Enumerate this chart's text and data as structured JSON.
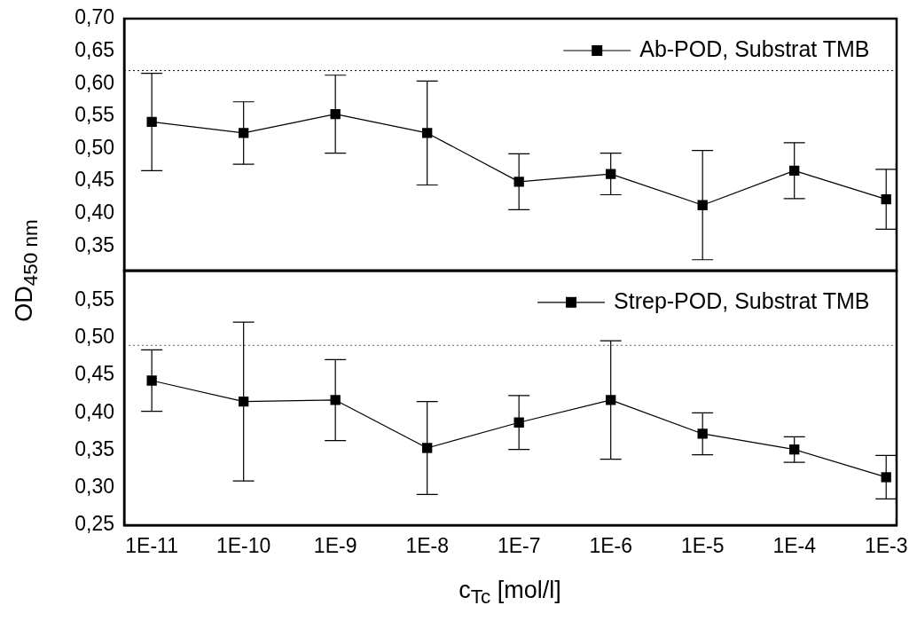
{
  "chart_data": [
    {
      "type": "line",
      "ylabel": "OD$_{450 nm}$",
      "x": [
        1e-11,
        1e-10,
        1e-09,
        1e-08,
        1e-07,
        1e-06,
        1e-05,
        0.0001,
        0.001
      ],
      "log": "x",
      "xlim": [
        5e-12,
        0.0013
      ],
      "xticks": [
        {
          "value": 1e-11,
          "label": null
        },
        {
          "value": 1e-10,
          "label": null
        },
        {
          "value": 1e-09,
          "label": null
        },
        {
          "value": 1e-08,
          "label": null
        },
        {
          "value": 1e-07,
          "label": null
        },
        {
          "value": 1e-06,
          "label": null
        },
        {
          "value": 1e-05,
          "label": null
        },
        {
          "value": 0.0001,
          "label": null
        },
        {
          "value": 0.001,
          "label": null
        }
      ],
      "ylim": [
        0.312,
        0.7
      ],
      "yticks": [
        {
          "value": 0.35,
          "label": "0,35"
        },
        {
          "value": 0.4,
          "label": "0,40"
        },
        {
          "value": 0.45,
          "label": "0,45"
        },
        {
          "value": 0.5,
          "label": "0,50"
        },
        {
          "value": 0.55,
          "label": "0,55"
        },
        {
          "value": 0.6,
          "label": "0,60"
        },
        {
          "value": 0.65,
          "label": "0,65"
        },
        {
          "value": 0.7,
          "label": "0,70"
        }
      ],
      "tick_labels": "y",
      "grid": false,
      "legend": "top right",
      "marker": "square",
      "line_style": "solid",
      "ref_lines": [
        {
          "axis": "y",
          "value": 0.62,
          "line_style": "dotted",
          "color": "#000000"
        }
      ],
      "series": [
        {
          "name": "Ab-POD, Substrat TMB",
          "color": "#000000",
          "values": [
            0.541,
            0.524,
            0.553,
            0.524,
            0.449,
            0.461,
            0.413,
            0.466,
            0.422
          ],
          "errors": [
            0.075,
            0.048,
            0.06,
            0.08,
            0.043,
            0.032,
            0.084,
            0.043,
            0.046
          ]
        }
      ]
    },
    {
      "type": "line",
      "xlabel": "c$_{Tc}$ [mol/l]",
      "x": [
        1e-11,
        1e-10,
        1e-09,
        1e-08,
        1e-07,
        1e-06,
        1e-05,
        0.0001,
        0.001
      ],
      "log": "x",
      "xlim": [
        5e-12,
        0.0013
      ],
      "xticks": [
        {
          "value": 1e-11,
          "label": "1E-11"
        },
        {
          "value": 1e-10,
          "label": "1E-10"
        },
        {
          "value": 1e-09,
          "label": "1E-9"
        },
        {
          "value": 1e-08,
          "label": "1E-8"
        },
        {
          "value": 1e-07,
          "label": "1E-7"
        },
        {
          "value": 1e-06,
          "label": "1E-6"
        },
        {
          "value": 1e-05,
          "label": "1E-5"
        },
        {
          "value": 0.0001,
          "label": "1E-4"
        },
        {
          "value": 0.001,
          "label": "1E-3"
        }
      ],
      "ylim": [
        0.25,
        0.59
      ],
      "yticks": [
        {
          "value": 0.25,
          "label": "0,25"
        },
        {
          "value": 0.3,
          "label": "0,30"
        },
        {
          "value": 0.35,
          "label": "0,35"
        },
        {
          "value": 0.4,
          "label": "0,40"
        },
        {
          "value": 0.45,
          "label": "0,45"
        },
        {
          "value": 0.5,
          "label": "0,50"
        },
        {
          "value": 0.55,
          "label": "0,55"
        }
      ],
      "grid": false,
      "legend": "top right",
      "marker": "square",
      "line_style": "solid",
      "ref_lines": [
        {
          "axis": "y",
          "value": 0.49,
          "line_style": "dotted",
          "color": "#666666"
        }
      ],
      "series": [
        {
          "name": "Strep-POD, Substrat TMB",
          "color": "#000000",
          "values": [
            0.443,
            0.415,
            0.417,
            0.353,
            0.387,
            0.417,
            0.372,
            0.351,
            0.314
          ],
          "errors": [
            0.041,
            0.106,
            0.054,
            0.062,
            0.036,
            0.079,
            0.028,
            0.017,
            0.029
          ]
        }
      ]
    }
  ]
}
